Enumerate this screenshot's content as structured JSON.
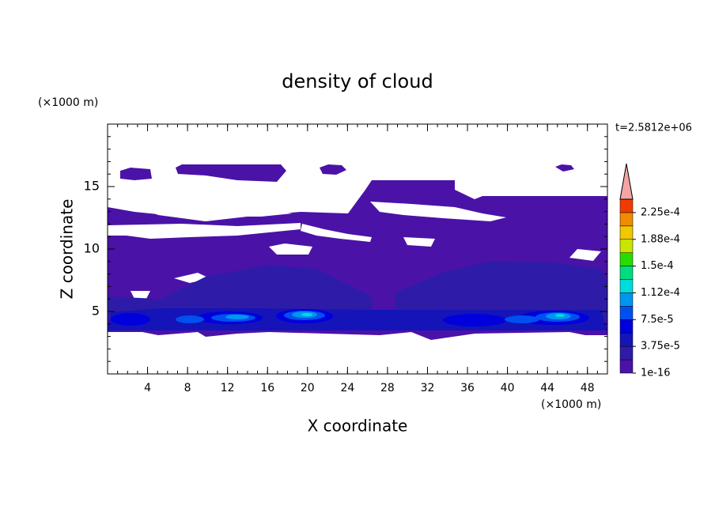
{
  "chart_data": {
    "type": "contour",
    "title": "density of cloud",
    "x_label": "X coordinate",
    "y_label": "Z coordinate",
    "x_unit": "(×1000 m)",
    "y_unit": "(×1000 m)",
    "time_label": "t=2.5812e+06",
    "xlim": [
      0,
      50
    ],
    "ylim": [
      0,
      20
    ],
    "xticks": [
      4,
      8,
      12,
      16,
      20,
      24,
      28,
      32,
      36,
      40,
      44,
      48
    ],
    "yticks": [
      5,
      10,
      15
    ],
    "colorbar": {
      "levels": [
        1e-16,
        1.875e-05,
        3.75e-05,
        5.625e-05,
        7.5e-05,
        9.375e-05,
        0.0001125,
        0.00013125,
        0.00015,
        0.00016875,
        0.0001875,
        0.00020625,
        0.000225,
        0.00024375
      ],
      "colors": [
        "#4b12a8",
        "#2e1ca8",
        "#1414b8",
        "#0000dc",
        "#0050f0",
        "#0096f0",
        "#00dcdc",
        "#00dc80",
        "#28dc00",
        "#c8e600",
        "#f0c800",
        "#f08c00",
        "#f03c00"
      ],
      "extend_color": "#f4a4a4",
      "ticks": [
        1e-16,
        {
          "value": 3.75e-05,
          "label": "3.75e-5"
        },
        {
          "value": 7.5e-05,
          "label": "7.5e-5"
        },
        {
          "value": 0.0001125,
          "label": "1.12e-4"
        },
        {
          "value": 0.00015,
          "label": "1.5e-4"
        },
        {
          "value": 0.0001875,
          "label": "1.88e-4"
        },
        {
          "value": 0.000225,
          "label": "2.25e-4"
        }
      ]
    }
  }
}
